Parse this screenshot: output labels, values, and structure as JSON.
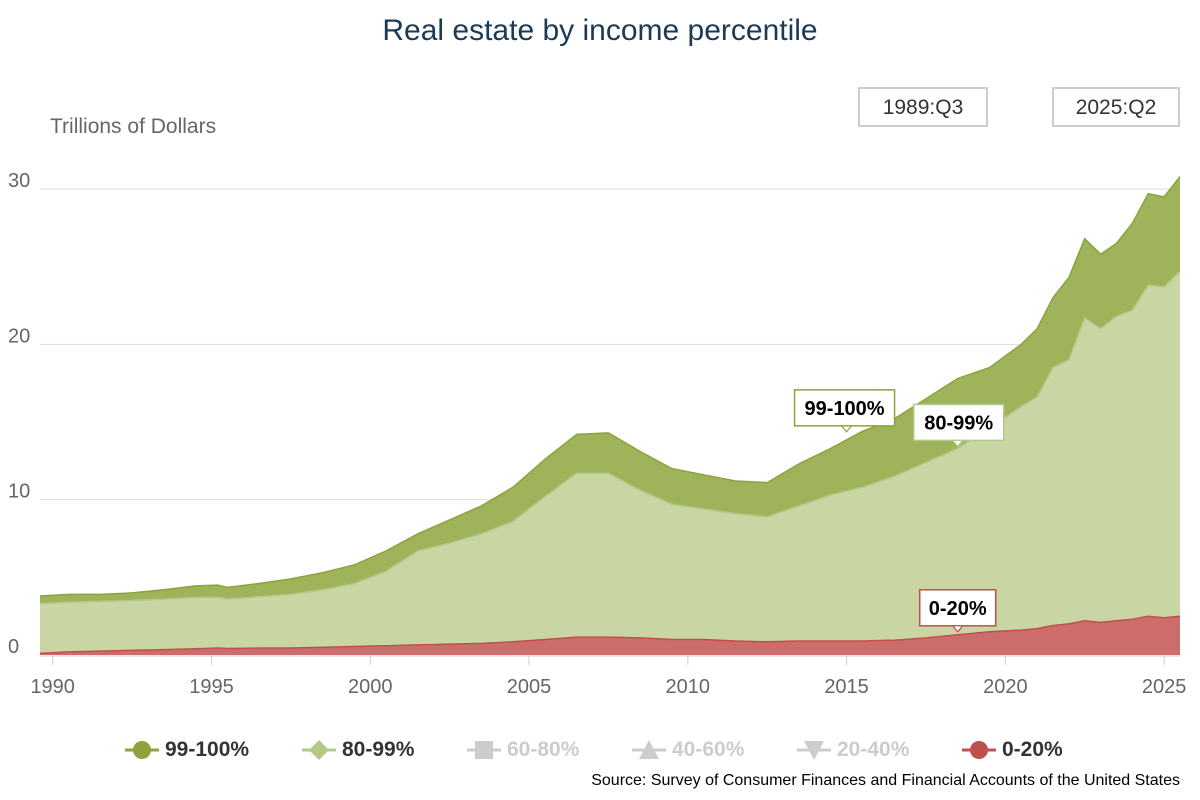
{
  "title": "Real estate by income percentile",
  "ylabel": "Trillions of Dollars",
  "range": {
    "start": "1989:Q3",
    "end": "2025:Q2"
  },
  "source": "Source: Survey of Consumer Finances and Financial Accounts of the United States",
  "colors": {
    "top1": "#8ca33c",
    "top1_fill": "#9fb45a",
    "next19": "#b3c98a",
    "next19_fill": "#c9d6a4",
    "bottom20": "#c0504d",
    "bottom20_fill": "#cc6c6b",
    "grid": "#dddddd",
    "axis_text": "#666666"
  },
  "legend": [
    {
      "label": "99-100%",
      "marker": "circle",
      "color": "#8ca33c",
      "active": true
    },
    {
      "label": "80-99%",
      "marker": "diamond",
      "color": "#b3c98a",
      "active": true
    },
    {
      "label": "60-80%",
      "marker": "square",
      "color": "#cccccc",
      "active": false
    },
    {
      "label": "40-60%",
      "marker": "triangle",
      "color": "#cccccc",
      "active": false
    },
    {
      "label": "20-40%",
      "marker": "triangle-down",
      "color": "#cccccc",
      "active": false
    },
    {
      "label": "0-20%",
      "marker": "circle",
      "color": "#c0504d",
      "active": true
    }
  ],
  "chart_data": {
    "type": "area",
    "stacked": true,
    "title": "Real estate by income percentile",
    "ylabel": "Trillions of Dollars",
    "xlabel": "",
    "xlim": [
      1989.6,
      2025.5
    ],
    "ylim": [
      0,
      30
    ],
    "x_ticks": [
      1990,
      1995,
      2000,
      2005,
      2010,
      2015,
      2020,
      2025
    ],
    "y_ticks": [
      0,
      10,
      20,
      30
    ],
    "grid": true,
    "x": [
      1989.6,
      1990.5,
      1991.5,
      1992.5,
      1993.5,
      1994.5,
      1995.2,
      1995.5,
      1996.5,
      1997.5,
      1998.5,
      1999.5,
      2000.5,
      2001.5,
      2002.5,
      2003.5,
      2004.5,
      2005.5,
      2006.5,
      2007.5,
      2008.5,
      2009.5,
      2010.5,
      2011.5,
      2012.5,
      2013.5,
      2014.5,
      2015.5,
      2016.5,
      2017.5,
      2018.5,
      2019.5,
      2020.5,
      2021.0,
      2021.5,
      2022.0,
      2022.5,
      2023.0,
      2023.5,
      2024.0,
      2024.5,
      2025.0,
      2025.5
    ],
    "series": [
      {
        "name": "0-20%",
        "values": [
          0.1,
          0.2,
          0.25,
          0.3,
          0.35,
          0.4,
          0.45,
          0.42,
          0.45,
          0.45,
          0.5,
          0.55,
          0.6,
          0.65,
          0.7,
          0.75,
          0.85,
          1.0,
          1.15,
          1.15,
          1.1,
          1.0,
          1.0,
          0.9,
          0.85,
          0.9,
          0.9,
          0.9,
          0.95,
          1.1,
          1.3,
          1.5,
          1.6,
          1.7,
          1.9,
          2.0,
          2.2,
          2.1,
          2.2,
          2.3,
          2.5,
          2.4,
          2.5
        ]
      },
      {
        "name": "80-99%",
        "values": [
          3.3,
          3.4,
          3.45,
          3.5,
          3.6,
          3.7,
          3.72,
          3.6,
          3.75,
          3.9,
          4.2,
          4.6,
          5.4,
          6.7,
          7.2,
          7.8,
          8.6,
          10.2,
          11.7,
          11.7,
          10.6,
          9.7,
          9.4,
          9.1,
          8.9,
          9.6,
          10.3,
          10.8,
          11.5,
          12.4,
          13.3,
          14.6,
          16.0,
          16.6,
          18.5,
          19.0,
          21.7,
          21.0,
          21.8,
          22.2,
          23.8,
          23.7,
          24.7
        ]
      },
      {
        "name": "99-100%",
        "values": [
          3.8,
          3.9,
          3.9,
          4.0,
          4.2,
          4.45,
          4.5,
          4.35,
          4.6,
          4.9,
          5.3,
          5.8,
          6.7,
          7.8,
          8.7,
          9.6,
          10.8,
          12.6,
          14.2,
          14.3,
          13.1,
          12.0,
          11.6,
          11.2,
          11.1,
          12.3,
          13.3,
          14.4,
          15.2,
          16.5,
          17.8,
          18.5,
          20.0,
          21.0,
          23.0,
          24.3,
          26.8,
          25.8,
          26.5,
          27.8,
          29.7,
          29.5,
          30.8
        ]
      }
    ],
    "annotations": [
      {
        "label": "99-100%",
        "series": "99-100%",
        "x": 2015.0
      },
      {
        "label": "80-99%",
        "series": "80-99%",
        "x": 2018.5
      },
      {
        "label": "0-20%",
        "series": "0-20%",
        "x": 2018.5
      }
    ]
  }
}
